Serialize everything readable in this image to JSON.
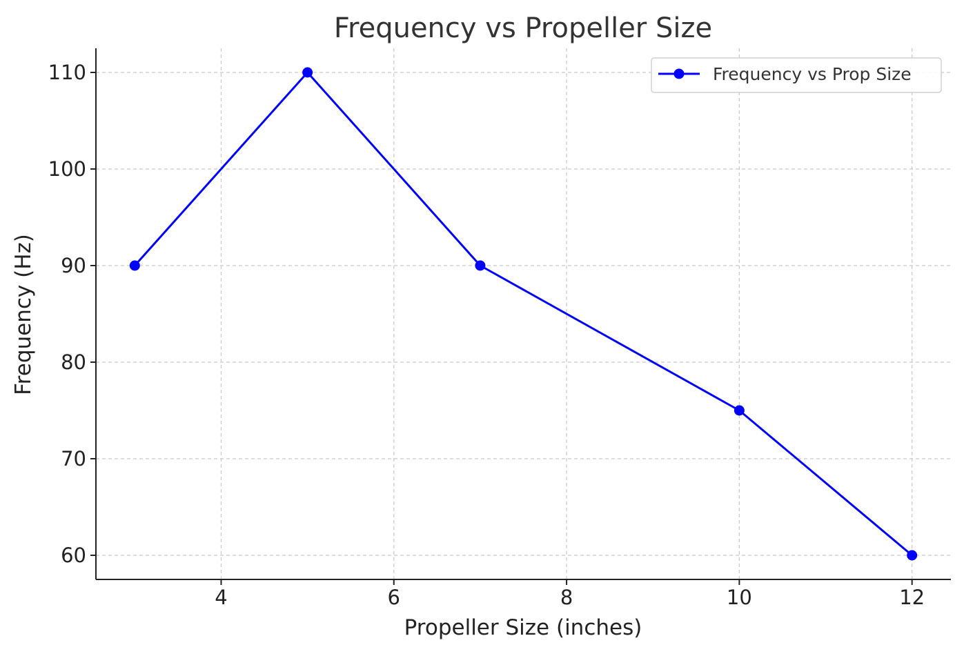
{
  "chart_data": {
    "type": "line",
    "title": "Frequency vs Propeller Size",
    "xlabel": "Propeller Size (inches)",
    "ylabel": "Frequency (Hz)",
    "xlim": [
      2.55,
      12.45
    ],
    "ylim": [
      57.5,
      112.5
    ],
    "xticks": [
      4,
      6,
      8,
      10,
      12
    ],
    "yticks": [
      60,
      70,
      80,
      90,
      100,
      110
    ],
    "grid": true,
    "legend_position": "top-right",
    "series": [
      {
        "name": "Frequency vs Prop Size",
        "color": "#0000ff",
        "marker": "circle",
        "x": [
          3,
          5,
          7,
          10,
          12
        ],
        "y": [
          90,
          110,
          90,
          75,
          60
        ]
      }
    ]
  }
}
